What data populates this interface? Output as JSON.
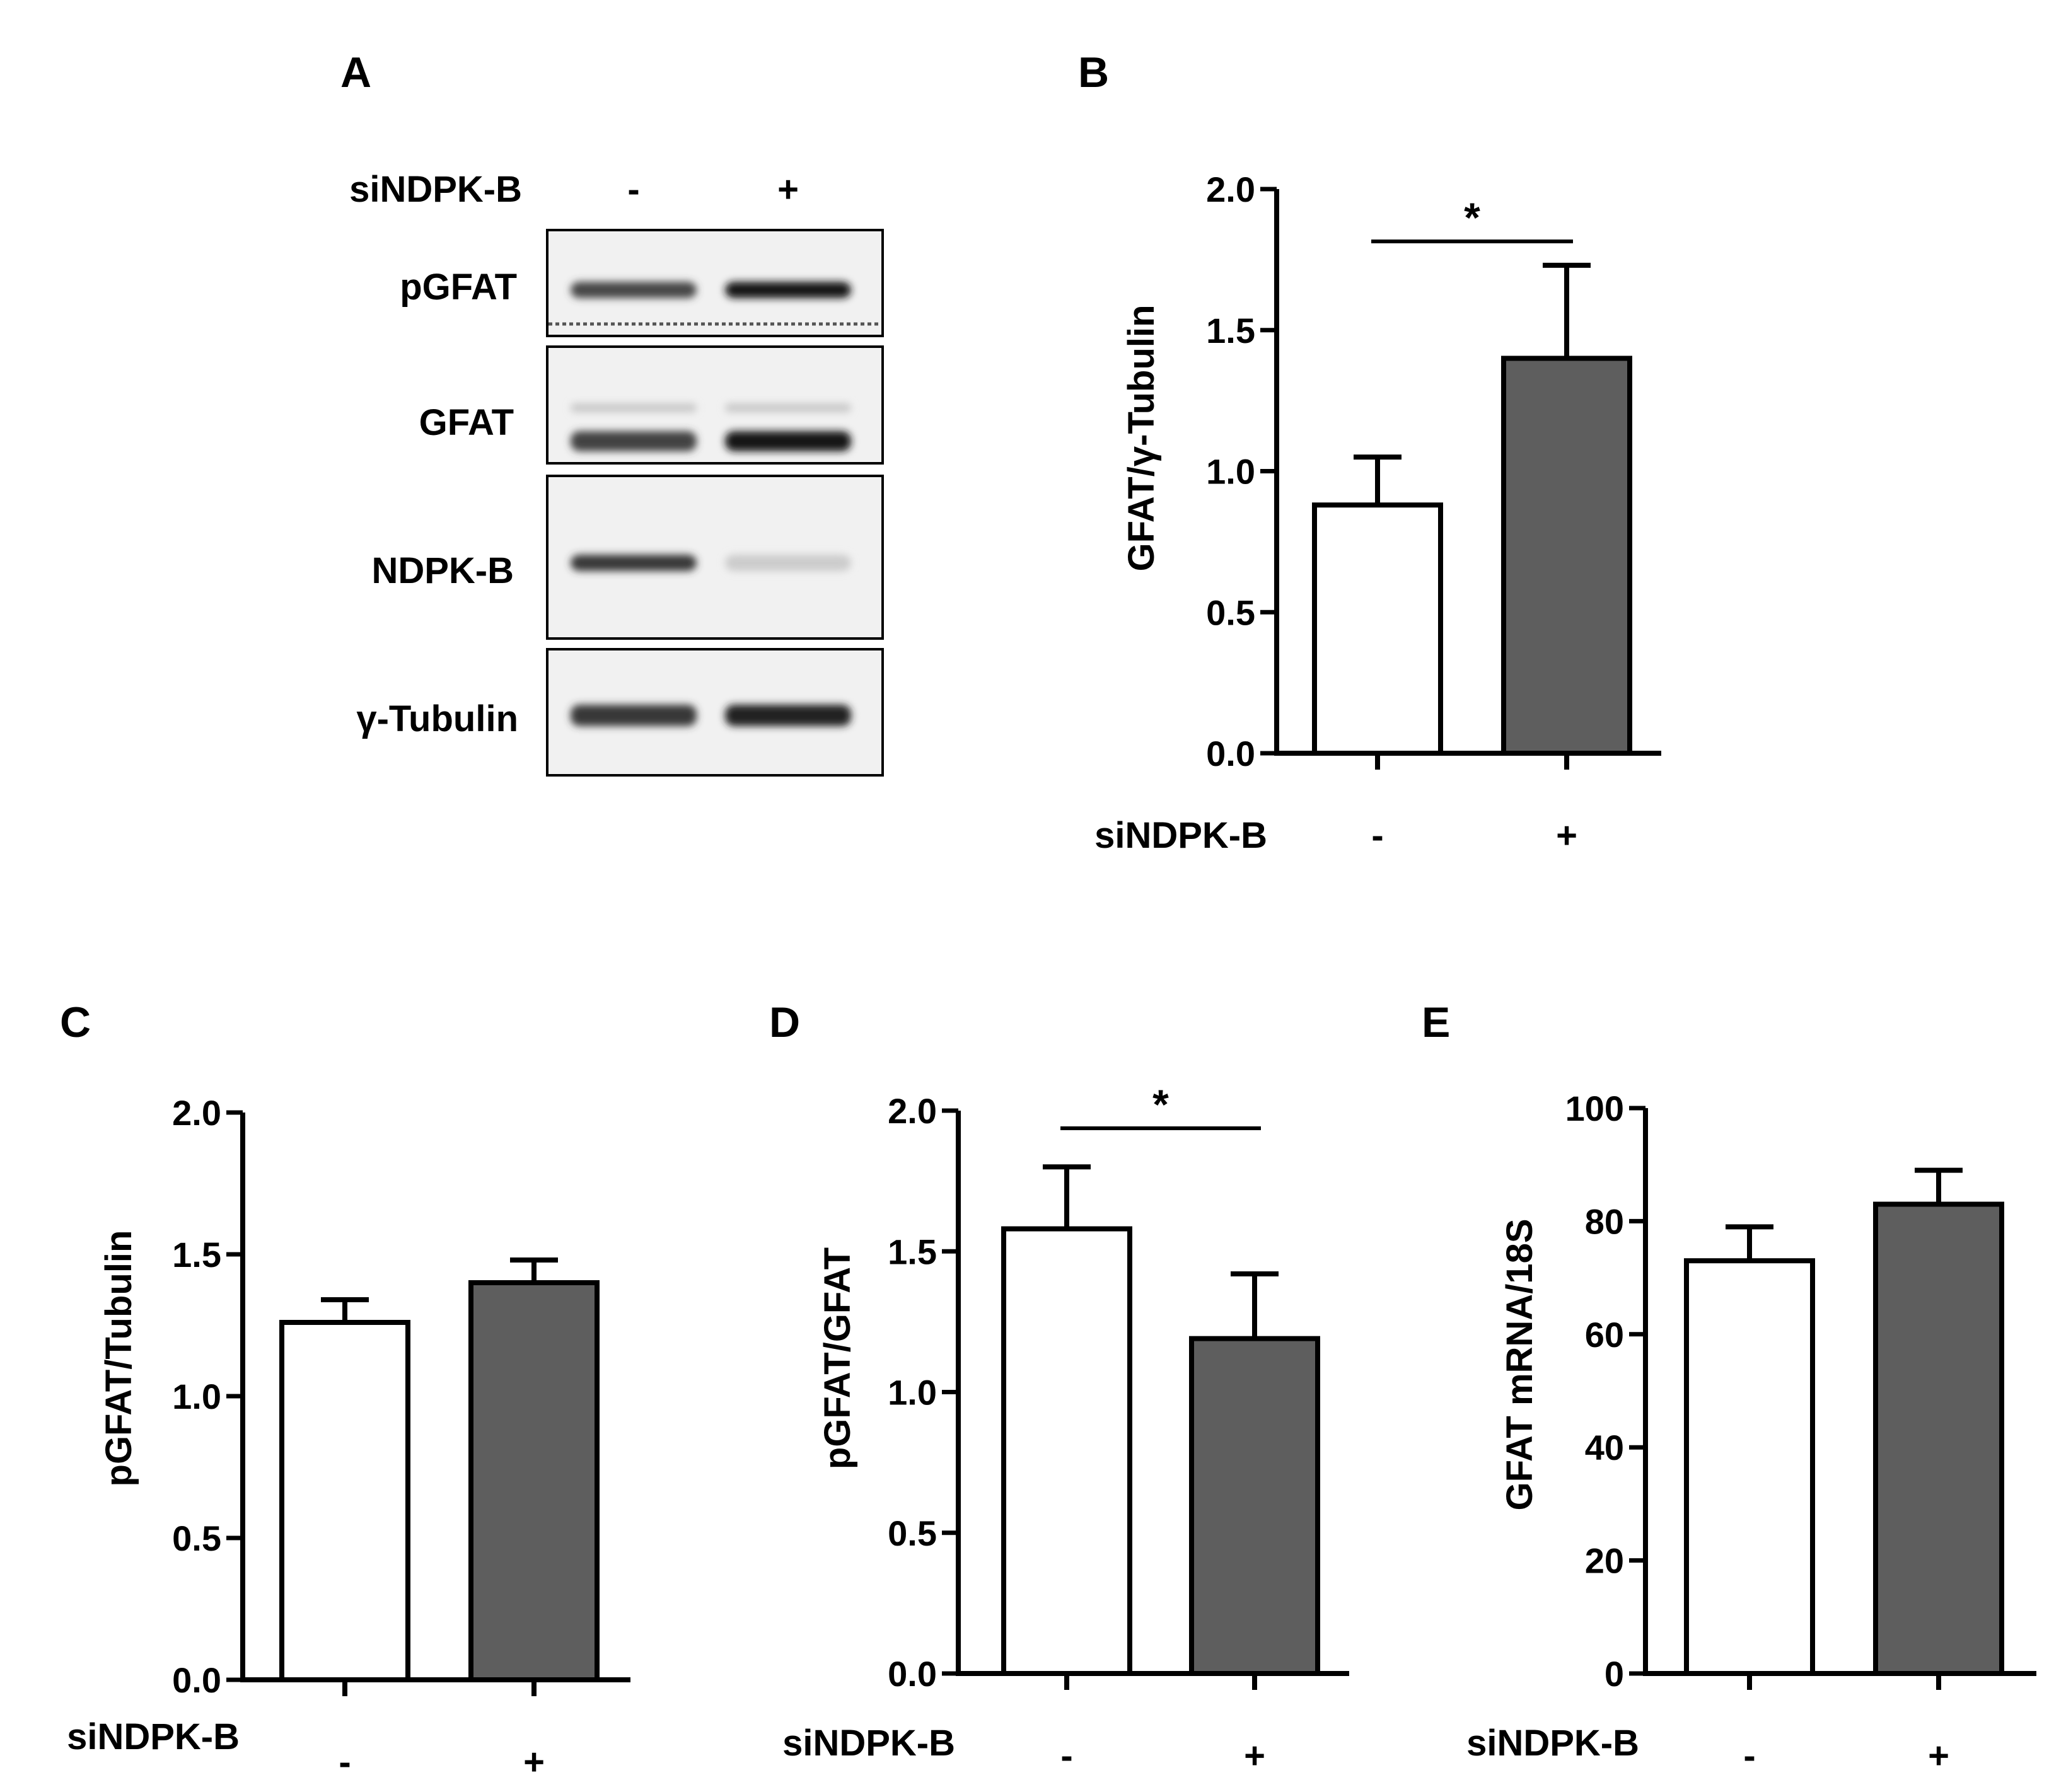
{
  "panel_a": {
    "label": "A",
    "treatment_label": "siNDPK-B",
    "lanes": [
      "-",
      "+"
    ],
    "blots": [
      {
        "label": "pGFAT",
        "bands": [
          0.78,
          1.0
        ]
      },
      {
        "label": "GFAT",
        "bands": [
          0.8,
          1.0
        ]
      },
      {
        "label": "NDPK-B",
        "bands": [
          0.85,
          0.15
        ]
      },
      {
        "label": "γ-Tubulin",
        "bands": [
          0.85,
          0.95
        ]
      }
    ]
  },
  "colors": {
    "control": "#ffffff",
    "treated": "#5e5e5e",
    "ink": "#000000"
  },
  "chart_data": [
    {
      "type": "bar",
      "panel": "B",
      "categories": [
        "-",
        "+"
      ],
      "values": [
        0.88,
        1.4
      ],
      "errors": [
        0.17,
        0.33
      ],
      "ylabel": "GFAT/γ-Tubulin",
      "xlabel": "siNDPK-B",
      "ylim": [
        0,
        2.0
      ],
      "yticks": [
        "0.0",
        "0.5",
        "1.0",
        "1.5",
        "2.0"
      ],
      "significance": "*"
    },
    {
      "type": "bar",
      "panel": "C",
      "categories": [
        "-",
        "+"
      ],
      "values": [
        1.26,
        1.4
      ],
      "errors": [
        0.08,
        0.08
      ],
      "ylabel": "pGFAT/Tubulin",
      "xlabel": "siNDPK-B",
      "ylim": [
        0,
        2.0
      ],
      "yticks": [
        "0.0",
        "0.5",
        "1.0",
        "1.5",
        "2.0"
      ],
      "significance": ""
    },
    {
      "type": "bar",
      "panel": "D",
      "categories": [
        "-",
        "+"
      ],
      "values": [
        1.58,
        1.19
      ],
      "errors": [
        0.22,
        0.23
      ],
      "ylabel": "pGFAT/GFAT",
      "xlabel": "siNDPK-B",
      "ylim": [
        0,
        2.0
      ],
      "yticks": [
        "0.0",
        "0.5",
        "1.0",
        "1.5",
        "2.0"
      ],
      "significance": "*"
    },
    {
      "type": "bar",
      "panel": "E",
      "categories": [
        "-",
        "+"
      ],
      "values": [
        73,
        83
      ],
      "errors": [
        6,
        6
      ],
      "ylabel": "GFAT mRNA/18S",
      "xlabel": "siNDPK-B",
      "ylim": [
        0,
        100
      ],
      "yticks": [
        "0",
        "20",
        "40",
        "60",
        "80",
        "100"
      ],
      "significance": ""
    }
  ]
}
